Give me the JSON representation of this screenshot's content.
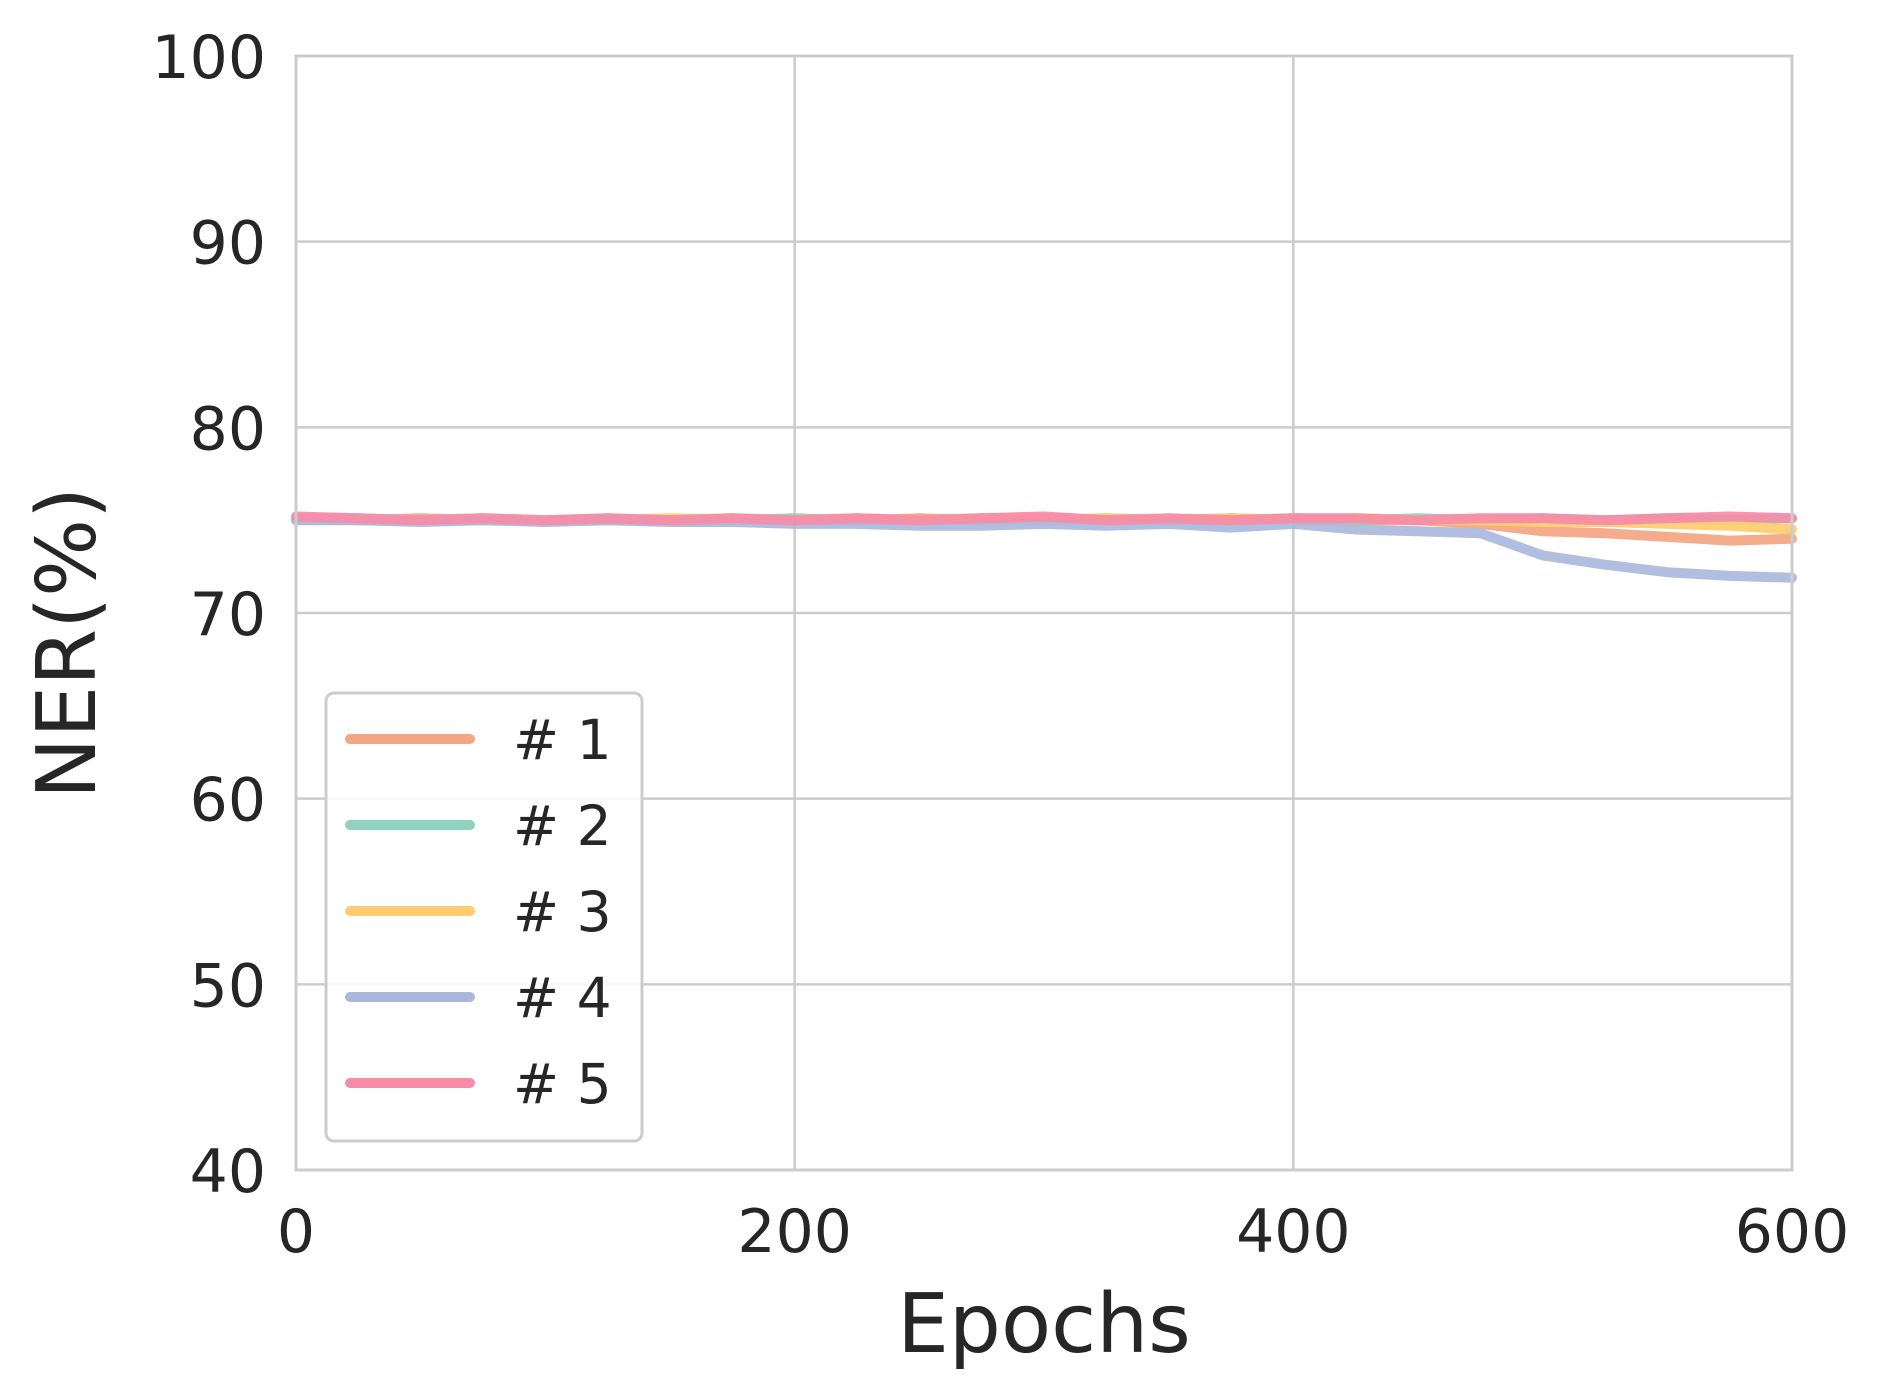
{
  "chart_data": {
    "type": "line",
    "title": "",
    "xlabel": "Epochs",
    "ylabel": "NER(%)",
    "xlim": [
      0,
      600
    ],
    "ylim": [
      40,
      100
    ],
    "xticks": [
      0,
      200,
      400,
      600
    ],
    "xtick_labels": [
      "0",
      "200",
      "400",
      "600"
    ],
    "yticks": [
      40,
      50,
      60,
      70,
      80,
      90,
      100
    ],
    "ytick_labels": [
      "40",
      "50",
      "60",
      "70",
      "80",
      "90",
      "100"
    ],
    "grid": true,
    "legend_position": "lower-left",
    "x": [
      0,
      25,
      50,
      75,
      100,
      125,
      150,
      175,
      200,
      225,
      250,
      275,
      300,
      325,
      350,
      375,
      400,
      425,
      450,
      475,
      500,
      525,
      550,
      575,
      600
    ],
    "series": [
      {
        "name": "# 1",
        "color": "#f4a582",
        "values": [
          75.1,
          75.0,
          75.1,
          75.0,
          75.0,
          75.0,
          75.0,
          75.1,
          75.0,
          75.0,
          75.1,
          75.0,
          75.1,
          75.0,
          75.0,
          75.1,
          75.0,
          75.0,
          75.0,
          74.8,
          74.4,
          74.3,
          74.1,
          73.9,
          74.0
        ]
      },
      {
        "name": "# 2",
        "color": "#8fd2bd",
        "values": [
          75.0,
          75.1,
          75.0,
          75.1,
          75.0,
          75.1,
          75.0,
          75.0,
          75.1,
          75.0,
          75.0,
          75.1,
          75.0,
          75.1,
          75.0,
          75.0,
          75.1,
          75.0,
          75.1,
          75.0,
          75.1,
          75.0,
          75.1,
          75.0,
          75.1
        ]
      },
      {
        "name": "# 3",
        "color": "#fdcc6e",
        "values": [
          75.1,
          75.0,
          75.0,
          75.1,
          75.0,
          75.0,
          75.1,
          75.0,
          75.0,
          75.1,
          75.0,
          75.1,
          75.0,
          75.1,
          75.0,
          75.1,
          75.0,
          75.1,
          75.0,
          75.0,
          74.9,
          74.9,
          74.8,
          74.7,
          74.5
        ]
      },
      {
        "name": "# 4",
        "color": "#aab8dc",
        "values": [
          75.0,
          75.0,
          74.9,
          75.0,
          74.9,
          75.0,
          74.9,
          74.9,
          74.8,
          74.8,
          74.7,
          74.7,
          74.8,
          74.7,
          74.8,
          74.6,
          74.8,
          74.5,
          74.4,
          74.3,
          73.1,
          72.6,
          72.2,
          72.0,
          71.9
        ]
      },
      {
        "name": "# 5",
        "color": "#f78ba8",
        "values": [
          75.2,
          75.1,
          75.0,
          75.1,
          75.0,
          75.1,
          75.0,
          75.1,
          75.0,
          75.1,
          75.0,
          75.1,
          75.2,
          75.0,
          75.1,
          75.0,
          75.1,
          75.1,
          75.0,
          75.1,
          75.1,
          75.0,
          75.1,
          75.2,
          75.1
        ]
      }
    ]
  }
}
